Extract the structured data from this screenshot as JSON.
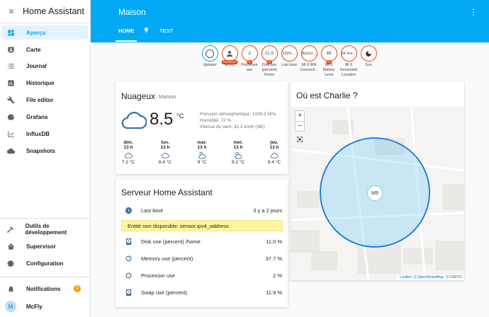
{
  "sidebar": {
    "title": "Home Assistant",
    "items": [
      {
        "label": "Aperçu",
        "icon": "dashboard-icon",
        "active": true
      },
      {
        "label": "Carte",
        "icon": "map-account-icon"
      },
      {
        "label": "Journal",
        "icon": "list-icon"
      },
      {
        "label": "Historique",
        "icon": "chart-box-icon"
      },
      {
        "label": "File editor",
        "icon": "wrench-icon"
      },
      {
        "label": "Grafana",
        "icon": "chart-areaspline-icon"
      },
      {
        "label": "InfluxDB",
        "icon": "chart-timeline-icon"
      },
      {
        "label": "Snapshots",
        "icon": "cloud-icon"
      }
    ],
    "bottom_items": [
      {
        "label": "Outils de développement",
        "icon": "hammer-icon"
      },
      {
        "label": "Supervisor",
        "icon": "home-assistant-icon"
      },
      {
        "label": "Configuration",
        "icon": "cog-icon"
      }
    ],
    "notifications": {
      "label": "Notifications",
      "count": "1"
    },
    "user": {
      "name": "McFly",
      "initial": "M"
    }
  },
  "topbar": {
    "title": "Maison",
    "tabs": [
      {
        "label": "HOME",
        "active": true
      },
      {
        "label": "TEST"
      }
    ]
  },
  "badges": [
    {
      "value": "",
      "label": "Updater",
      "color": "blue"
    },
    {
      "value": "",
      "label": "McFly",
      "tag": "PRÉSENT",
      "icon": "person-icon"
    },
    {
      "value": "2",
      "label": "Processor use",
      "tag": "%"
    },
    {
      "value": "11.0",
      "label": "Disk use (percent) /home",
      "tag": "%"
    },
    {
      "value": "2020-...",
      "label": "Last boot"
    },
    {
      "value": "BoxGr...",
      "label": "Mi 9 Wifi Connecti..."
    },
    {
      "value": "46",
      "label": "Mi 9 Battery Level",
      "tag": "%"
    },
    {
      "value": "94 Ker...",
      "label": "Mi 9 Geocoded Location"
    },
    {
      "value": "",
      "label": "Sun",
      "icon": "moon-icon"
    }
  ],
  "weather": {
    "title": "Nuageux",
    "location": "Maison",
    "temp": "8.5",
    "unit": "°C",
    "pressure": "Pression atmosphérique: 1026.2 hPa",
    "humidity": "Humidité: 72 %",
    "wind": "Vitesse du vent: 31.3 km/h (NE)",
    "forecast": [
      {
        "day": "dim.",
        "hour": "13 h",
        "temp": "7.2 °C",
        "icon": "cloud-icon"
      },
      {
        "day": "lun.",
        "hour": "13 h",
        "temp": "6.4 °C",
        "icon": "cloud-icon"
      },
      {
        "day": "mar.",
        "hour": "13 h",
        "temp": "9 °C",
        "icon": "partly-cloudy-icon"
      },
      {
        "day": "mer.",
        "hour": "13 h",
        "temp": "9.2 °C",
        "icon": "partly-cloudy-icon"
      },
      {
        "day": "jeu.",
        "hour": "13 h",
        "temp": "8.4 °C",
        "icon": "cloud-icon"
      }
    ]
  },
  "server": {
    "title": "Serveur Home Assistant",
    "last_boot": {
      "label": "Last boot",
      "value": "Il y a 2 jours"
    },
    "warning": "Entité non disponible: sensor.ipv4_address",
    "rows": [
      {
        "label": "Disk use (percent) /home",
        "value": "11.0 %"
      },
      {
        "label": "Memory use (percent)",
        "value": "37.7 %"
      },
      {
        "label": "Processor use",
        "value": "2 %"
      },
      {
        "label": "Swap use (percent)",
        "value": "11.9 %"
      }
    ]
  },
  "map": {
    "title": "Où est Charlie ?",
    "marker": "M9",
    "zoom_in": "+",
    "zoom_out": "−",
    "attribution_leaflet": "Leaflet",
    "attribution_rest": "| © OpenStreetMap, © CARTO"
  }
}
